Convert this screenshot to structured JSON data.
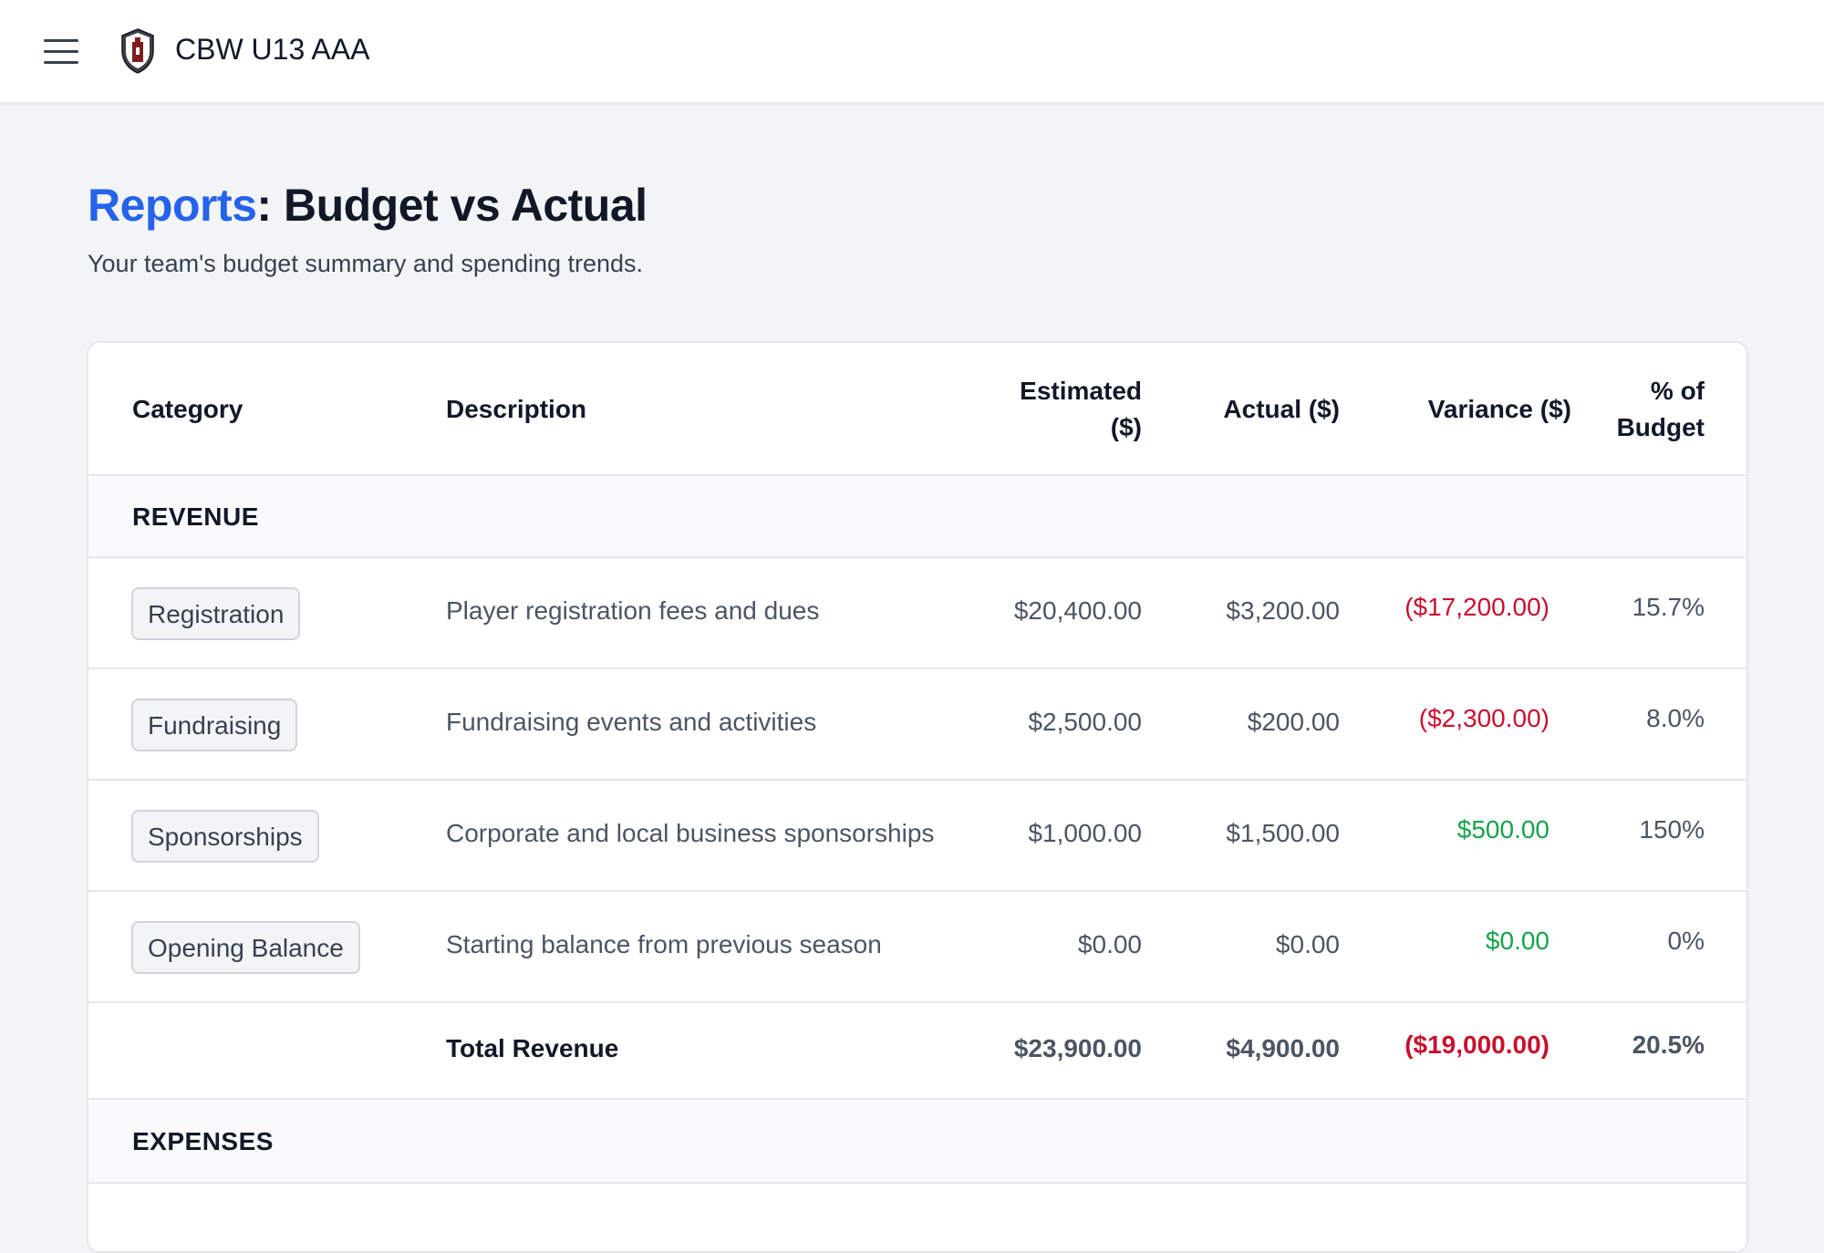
{
  "header": {
    "team_name": "CBW U13 AAA"
  },
  "page": {
    "breadcrumb": "Reports",
    "separator": ":",
    "title": "Budget vs Actual",
    "subtitle": "Your team's budget summary and spending trends."
  },
  "table": {
    "columns": {
      "category": "Category",
      "description": "Description",
      "estimated_line1": "Estimated",
      "estimated_line2": "($)",
      "actual": "Actual ($)",
      "variance": "Variance ($)",
      "pct_line1": "% of",
      "pct_line2": "Budget"
    },
    "revenue_section": "REVENUE",
    "revenue_rows": [
      {
        "category": "Registration",
        "description": "Player registration fees and dues",
        "estimated": "$20,400.00",
        "actual": "$3,200.00",
        "variance": "($17,200.00)",
        "pct": "15.7%"
      },
      {
        "category": "Fundraising",
        "description": "Fundraising events and activities",
        "estimated": "$2,500.00",
        "actual": "$200.00",
        "variance": "($2,300.00)",
        "pct": "8.0%"
      },
      {
        "category": "Sponsorships",
        "description": "Corporate and local business sponsorships",
        "estimated": "$1,000.00",
        "actual": "$1,500.00",
        "variance": "$500.00",
        "pct": "150%"
      },
      {
        "category": "Opening Balance",
        "description": "Starting balance from previous season",
        "estimated": "$0.00",
        "actual": "$0.00",
        "variance": "$0.00",
        "pct": "0%"
      }
    ],
    "revenue_total": {
      "label": "Total Revenue",
      "estimated": "$23,900.00",
      "actual": "$4,900.00",
      "variance": "($19,000.00)",
      "pct": "20.5%"
    },
    "expenses_section": "EXPENSES"
  },
  "colors": {
    "accent": "#2563eb",
    "negative": "#c8102e",
    "positive": "#16a34a"
  }
}
